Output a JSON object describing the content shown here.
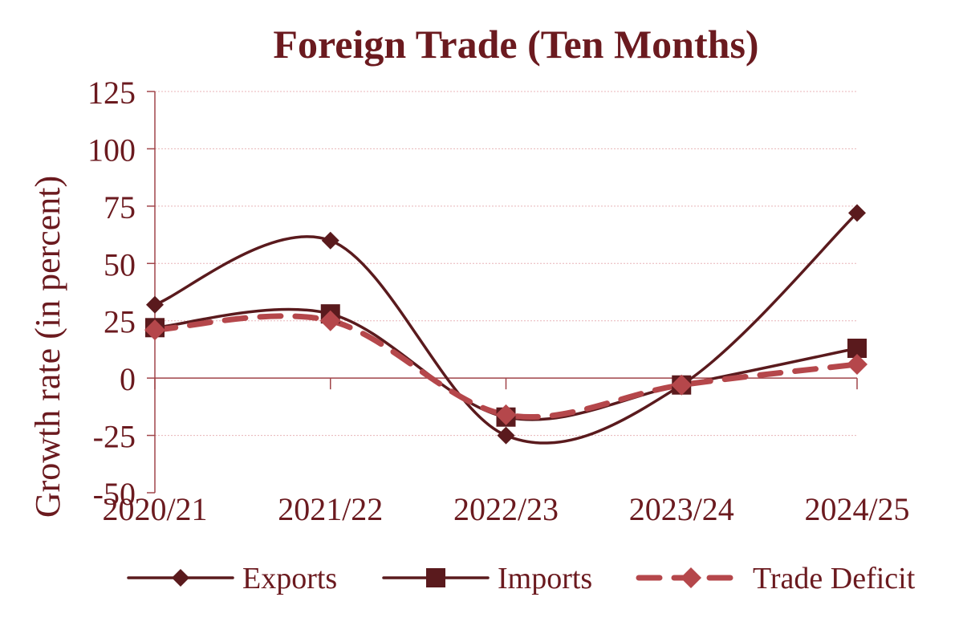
{
  "chart_data": {
    "type": "line",
    "title": "Foreign Trade (Ten Months)",
    "xlabel": "",
    "ylabel": "Growth rate (in percent)",
    "categories": [
      "2020/21",
      "2021/22",
      "2022/23",
      "2023/24",
      "2024/25"
    ],
    "ylim": [
      -50,
      125
    ],
    "yticks": [
      125,
      100,
      75,
      50,
      25,
      0,
      -25,
      -50
    ],
    "grid": true,
    "legend_position": "bottom",
    "series": [
      {
        "name": "Exports",
        "values": [
          32,
          60,
          -25,
          -3,
          72
        ],
        "color": "#5a1a1d",
        "marker": "diamond",
        "line_style": "solid",
        "smooth": true
      },
      {
        "name": "Imports",
        "values": [
          22,
          28,
          -17,
          -3,
          13
        ],
        "color": "#5a1a1d",
        "marker": "square",
        "line_style": "solid",
        "smooth": true
      },
      {
        "name": "Trade Deficit",
        "values": [
          21,
          25,
          -16,
          -3,
          6
        ],
        "color": "#b5474b",
        "marker": "diamond",
        "line_style": "dashed",
        "smooth": true
      }
    ],
    "colors": {
      "title": "#6b1a1f",
      "axis_text": "#6b1a1f",
      "gridline": "#e8b4b8",
      "axis_line": "#a0454a"
    }
  }
}
